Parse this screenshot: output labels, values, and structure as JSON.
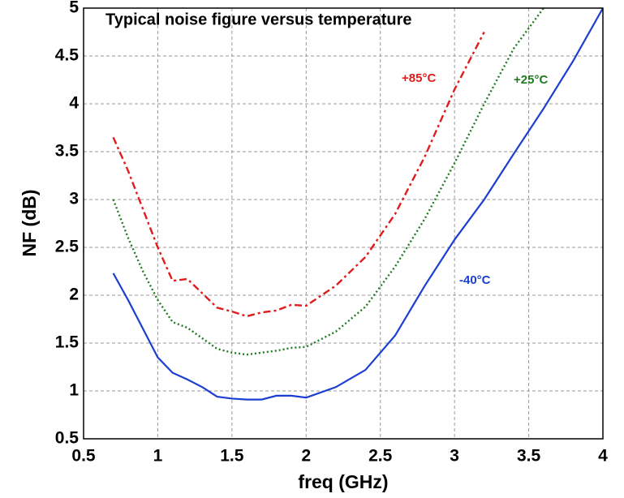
{
  "chart_data": {
    "type": "line",
    "title": "Typical noise figure versus temperature",
    "xlabel": "freq (GHz)",
    "ylabel": "NF (dB)",
    "x": [
      0.7,
      0.8,
      0.9,
      1.0,
      1.1,
      1.2,
      1.3,
      1.4,
      1.5,
      1.6,
      1.7,
      1.8,
      1.9,
      2.0,
      2.2,
      2.4,
      2.6,
      2.8,
      3.0,
      3.2,
      3.4,
      3.6,
      3.8,
      4.0
    ],
    "series": [
      {
        "name": "+85°C",
        "color": "#e01b1b",
        "style": "dashdot",
        "values": [
          3.65,
          3.3,
          2.9,
          2.5,
          2.15,
          2.17,
          2.02,
          1.87,
          1.83,
          1.78,
          1.82,
          1.84,
          1.9,
          1.89,
          2.1,
          2.4,
          2.85,
          3.45,
          4.15,
          4.75,
          null,
          null,
          null,
          null
        ]
      },
      {
        "name": "+25°C",
        "color": "#1f7a1f",
        "style": "dotted",
        "values": [
          3.0,
          2.6,
          2.25,
          1.95,
          1.72,
          1.66,
          1.55,
          1.44,
          1.4,
          1.38,
          1.4,
          1.42,
          1.45,
          1.46,
          1.62,
          1.88,
          2.3,
          2.8,
          3.38,
          4.0,
          4.58,
          5.0,
          null,
          null
        ]
      },
      {
        "name": "-40°C",
        "color": "#1b3fd0",
        "style": "solid",
        "values": [
          2.23,
          1.95,
          1.65,
          1.35,
          1.19,
          1.12,
          1.04,
          0.94,
          0.92,
          0.91,
          0.91,
          0.95,
          0.95,
          0.93,
          1.04,
          1.22,
          1.58,
          2.1,
          2.58,
          3.0,
          3.48,
          3.95,
          4.45,
          5.0
        ]
      }
    ],
    "xlim": [
      0.5,
      4
    ],
    "xticks": [
      0.5,
      1,
      1.5,
      2,
      2.5,
      3,
      3.5,
      4
    ],
    "ylim": [
      0.5,
      5
    ],
    "yticks": [
      0.5,
      1,
      1.5,
      2,
      2.5,
      3,
      3.5,
      4,
      4.5,
      5
    ],
    "grid": true
  }
}
